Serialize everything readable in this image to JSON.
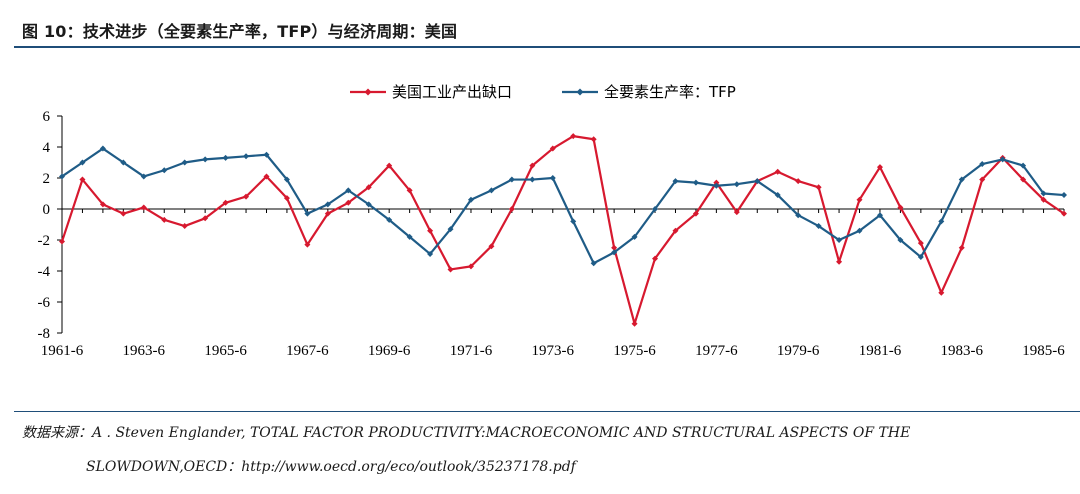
{
  "figure": {
    "title": "图 10：技术进步（全要素生产率，TFP）与经济周期：美国"
  },
  "chart_data": {
    "type": "line",
    "title": "",
    "xlabel": "",
    "ylabel": "",
    "ylim": [
      -8,
      6
    ],
    "yticks": [
      6,
      4,
      2,
      0,
      -2,
      -4,
      -6,
      -8
    ],
    "x_tick_labels": [
      "1961-6",
      "1963-6",
      "1965-6",
      "1967-6",
      "1969-6",
      "1971-6",
      "1973-6",
      "1975-6",
      "1977-6",
      "1979-6",
      "1981-6",
      "1983-6",
      "1985-6"
    ],
    "series": [
      {
        "name": "美国工业产出缺口",
        "color": "#d7192f",
        "values": [
          -2.1,
          1.9,
          0.3,
          -0.3,
          0.1,
          -0.7,
          -1.1,
          -0.6,
          0.4,
          0.8,
          2.1,
          0.7,
          -2.3,
          -0.3,
          0.4,
          1.4,
          2.8,
          1.2,
          -1.4,
          -3.9,
          -3.7,
          -2.4,
          0.0,
          2.8,
          3.9,
          4.7,
          4.5,
          -2.5,
          -7.4,
          -3.2,
          -1.4,
          -0.3,
          1.7,
          -0.2,
          1.8,
          2.4,
          1.8,
          1.4,
          -3.4,
          0.6,
          2.7,
          0.1,
          -2.2,
          -5.4,
          -2.5,
          1.9,
          3.3,
          1.9,
          0.6,
          -0.3
        ]
      },
      {
        "name": "全要素生产率：TFP",
        "color": "#1f5c87",
        "values": [
          2.1,
          3.0,
          3.9,
          3.0,
          2.1,
          2.5,
          3.0,
          3.2,
          3.3,
          3.4,
          3.5,
          1.9,
          -0.3,
          0.3,
          1.2,
          0.3,
          -0.7,
          -1.8,
          -2.9,
          -1.3,
          0.6,
          1.2,
          1.9,
          1.9,
          2.0,
          -0.8,
          -3.5,
          -2.8,
          -1.8,
          0.0,
          1.8,
          1.7,
          1.5,
          1.6,
          1.8,
          0.9,
          -0.4,
          -1.1,
          -2.0,
          -1.4,
          -0.4,
          -2.0,
          -3.1,
          -0.8,
          1.9,
          2.9,
          3.2,
          2.8,
          1.0,
          0.9
        ]
      }
    ],
    "legend_position": "top-center"
  },
  "source": {
    "line1": "数据来源：A . Steven Englander, TOTAL FACTOR PRODUCTIVITY:MACROECONOMIC AND STRUCTURAL ASPECTS OF THE",
    "line2": "SLOWDOWN,OECD：http://www.oecd.org/eco/outlook/35237178.pdf"
  }
}
